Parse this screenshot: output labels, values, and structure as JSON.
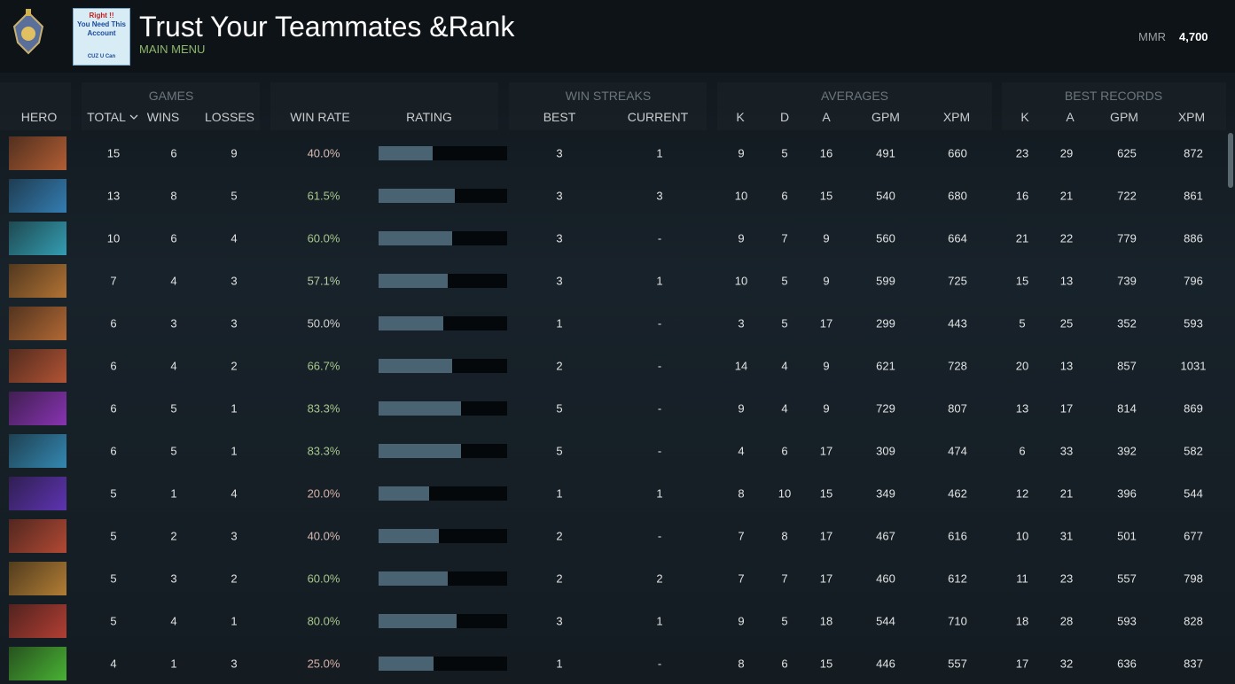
{
  "header": {
    "title": "Trust Your Teammates &Rank",
    "subtitle": "MAIN MENU",
    "mmr_label": "MMR",
    "mmr_value": "4,700",
    "badge_text": [
      "Right !!",
      "You Need This",
      "Account",
      "CUZ U Can"
    ]
  },
  "table": {
    "groups": [
      "GAMES",
      "WIN STREAKS",
      "AVERAGES",
      "BEST RECORDS"
    ],
    "columns": [
      "HERO",
      "TOTAL",
      "WINS",
      "LOSSES",
      "WIN RATE",
      "RATING",
      "BEST",
      "CURRENT",
      "K",
      "D",
      "A",
      "GPM",
      "XPM",
      "K",
      "A",
      "GPM",
      "XPM"
    ],
    "rating_lim": [
      0,
      100
    ],
    "rows": [
      {
        "cells": [
          15,
          6,
          9,
          "40.0%",
          3,
          1,
          9,
          5,
          16,
          491,
          660,
          23,
          29,
          625,
          872
        ],
        "rating": 42,
        "win_rate_color": "#d8bcb4"
      },
      {
        "cells": [
          13,
          8,
          5,
          "61.5%",
          3,
          3,
          10,
          6,
          15,
          540,
          680,
          16,
          21,
          722,
          861
        ],
        "rating": 59,
        "win_rate_color": "#a6c78c"
      },
      {
        "cells": [
          10,
          6,
          4,
          "60.0%",
          3,
          "-",
          9,
          7,
          9,
          560,
          664,
          21,
          22,
          779,
          886
        ],
        "rating": 57,
        "win_rate_color": "#a6c78c"
      },
      {
        "cells": [
          7,
          4,
          3,
          "57.1%",
          3,
          1,
          10,
          5,
          9,
          599,
          725,
          15,
          13,
          739,
          796
        ],
        "rating": 54,
        "win_rate_color": "#b8cfa4"
      },
      {
        "cells": [
          6,
          3,
          3,
          "50.0%",
          1,
          "-",
          3,
          5,
          17,
          299,
          443,
          5,
          25,
          352,
          593
        ],
        "rating": 50,
        "win_rate_color": "#d4d4d0"
      },
      {
        "cells": [
          6,
          4,
          2,
          "66.7%",
          2,
          "-",
          14,
          4,
          9,
          621,
          728,
          20,
          13,
          857,
          1031
        ],
        "rating": 57,
        "win_rate_color": "#a6c78c"
      },
      {
        "cells": [
          6,
          5,
          1,
          "83.3%",
          5,
          "-",
          9,
          4,
          9,
          729,
          807,
          13,
          17,
          814,
          869
        ],
        "rating": 64,
        "win_rate_color": "#a6c78c"
      },
      {
        "cells": [
          6,
          5,
          1,
          "83.3%",
          5,
          "-",
          4,
          6,
          17,
          309,
          474,
          6,
          33,
          392,
          582
        ],
        "rating": 64,
        "win_rate_color": "#a6c78c"
      },
      {
        "cells": [
          5,
          1,
          4,
          "20.0%",
          1,
          1,
          8,
          10,
          15,
          349,
          462,
          12,
          21,
          396,
          544
        ],
        "rating": 39,
        "win_rate_color": "#d8b0a8"
      },
      {
        "cells": [
          5,
          2,
          3,
          "40.0%",
          2,
          "-",
          7,
          8,
          17,
          467,
          616,
          10,
          31,
          501,
          677
        ],
        "rating": 47,
        "win_rate_color": "#d8bcb4"
      },
      {
        "cells": [
          5,
          3,
          2,
          "60.0%",
          2,
          2,
          7,
          7,
          17,
          460,
          612,
          11,
          23,
          557,
          798
        ],
        "rating": 54,
        "win_rate_color": "#a6c78c"
      },
      {
        "cells": [
          5,
          4,
          1,
          "80.0%",
          3,
          1,
          9,
          5,
          18,
          544,
          710,
          18,
          28,
          593,
          828
        ],
        "rating": 61,
        "win_rate_color": "#a6c78c"
      },
      {
        "cells": [
          4,
          1,
          3,
          "25.0%",
          1,
          "-",
          8,
          6,
          15,
          446,
          557,
          17,
          32,
          636,
          837
        ],
        "rating": 43,
        "win_rate_color": "#d8b0a8"
      }
    ]
  }
}
